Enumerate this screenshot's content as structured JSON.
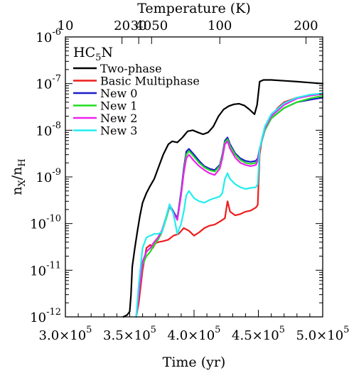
{
  "chart_data": {
    "type": "line",
    "title": "",
    "species_label": {
      "base": "HC",
      "sub": "5",
      "tail": "N"
    },
    "xlabel": "Time (yr)",
    "ylabel": {
      "base": "n",
      "sub1": "X",
      "mid": "/n",
      "sub2": "H"
    },
    "top_axis_label": "Temperature (K)",
    "xlim": [
      300000,
      500000
    ],
    "ylim": [
      1e-12,
      1e-06
    ],
    "y_scale": "log",
    "grid": false,
    "legend_position": "top-left",
    "x_ticks": [
      {
        "value": 300000,
        "mant": "3.0",
        "exp": "5"
      },
      {
        "value": 350000,
        "mant": "3.5",
        "exp": "5"
      },
      {
        "value": 400000,
        "mant": "4.0",
        "exp": "5"
      },
      {
        "value": 450000,
        "mant": "4.5",
        "exp": "5"
      },
      {
        "value": 500000,
        "mant": "5.0",
        "exp": "5"
      }
    ],
    "y_ticks": [
      {
        "value": 1e-12,
        "exp": "-12"
      },
      {
        "value": 1e-11,
        "exp": "-11"
      },
      {
        "value": 1e-10,
        "exp": "-10"
      },
      {
        "value": 1e-09,
        "exp": "-9"
      },
      {
        "value": 1e-08,
        "exp": "-8"
      },
      {
        "value": 1e-07,
        "exp": "-7"
      },
      {
        "value": 1e-06,
        "exp": "-6"
      }
    ],
    "top_ticks": [
      {
        "value": 300000,
        "label": "10"
      },
      {
        "value": 344000,
        "label": "20"
      },
      {
        "value": 357000,
        "label": "30"
      },
      {
        "value": 367000,
        "label": "4050"
      },
      {
        "value": 420000,
        "label": "100"
      },
      {
        "value": 487000,
        "label": "200"
      }
    ],
    "series": [
      {
        "name": "Two-phase",
        "color": "#000000",
        "x": [
          345000,
          348000,
          350000,
          351000,
          352000,
          354000,
          356000,
          358000,
          360000,
          363000,
          366000,
          369000,
          372000,
          376000,
          380000,
          383000,
          387000,
          391000,
          395000,
          399000,
          403000,
          407000,
          411000,
          415000,
          419000,
          423000,
          427000,
          431000,
          435000,
          439000,
          443000,
          447000,
          449000,
          451000,
          454000,
          460000,
          470000,
          480000,
          490000,
          500000
        ],
        "y": [
          1e-12,
          1.1e-12,
          1.3e-12,
          3e-12,
          1.2e-11,
          3e-11,
          7e-11,
          1.5e-10,
          2.8e-10,
          4.5e-10,
          6.5e-10,
          9e-10,
          1.5e-09,
          3e-09,
          5e-09,
          5.8e-09,
          5.5e-09,
          7e-09,
          9.5e-09,
          1e-08,
          9e-09,
          8.2e-09,
          9e-09,
          1.2e-08,
          2e-08,
          2.8e-08,
          3.3e-08,
          3.6e-08,
          3.7e-08,
          3.4e-08,
          2.8e-08,
          2.2e-08,
          3.5e-08,
          1.1e-07,
          1.2e-07,
          1.2e-07,
          1.15e-07,
          1.1e-07,
          1.05e-07,
          1e-07
        ]
      },
      {
        "name": "Basic Multiphase",
        "color": "#ee1c1c",
        "x": [
          355000,
          357000,
          360000,
          363000,
          366000,
          368000,
          370000,
          372000,
          376000,
          380000,
          384000,
          388000,
          392000,
          396000,
          400000,
          404000,
          408000,
          412000,
          416000,
          420000,
          424000,
          426000,
          428000,
          432000,
          436000,
          440000,
          444000,
          448000,
          449500,
          451000,
          453000,
          456000,
          460000,
          465000,
          470000,
          480000,
          490000,
          500000
        ],
        "y": [
          1e-12,
          2e-12,
          1e-11,
          3e-11,
          3.5e-11,
          3e-11,
          3.8e-11,
          4e-11,
          4.2e-11,
          4.5e-11,
          5.5e-11,
          6e-11,
          8e-11,
          7e-11,
          5.5e-11,
          6.5e-11,
          8e-11,
          9e-11,
          9.5e-11,
          1.1e-10,
          1.3e-10,
          3e-10,
          1.8e-10,
          1.5e-10,
          1.6e-10,
          1.8e-10,
          1.9e-10,
          2.2e-10,
          2.5e-10,
          3e-09,
          7e-09,
          1.3e-08,
          2e-08,
          3e-08,
          4e-08,
          5e-08,
          5.5e-08,
          6e-08
        ]
      },
      {
        "name": "New 0",
        "color": "#1c1ccc",
        "x": [
          355000,
          357000,
          360000,
          363000,
          366000,
          369000,
          372000,
          375000,
          378000,
          381000,
          384000,
          387000,
          390000,
          392000,
          394000,
          396000,
          400000,
          404000,
          408000,
          412000,
          416000,
          420000,
          422000,
          424000,
          426000,
          428000,
          432000,
          436000,
          440000,
          444000,
          448000,
          449500,
          451000,
          455000,
          460000,
          470000,
          480000,
          490000,
          500000
        ],
        "y": [
          1e-12,
          3e-12,
          1.5e-11,
          2.5e-11,
          3e-11,
          4e-11,
          5e-11,
          7e-11,
          1.3e-10,
          2.5e-10,
          1.8e-10,
          1.3e-10,
          5e-10,
          1.5e-09,
          3.5e-09,
          4e-09,
          3e-09,
          2.2e-09,
          1.7e-09,
          1.5e-09,
          1.4e-09,
          1.8e-09,
          3e-09,
          6e-09,
          7e-09,
          5e-09,
          3.2e-09,
          2.5e-09,
          2.2e-09,
          2.1e-09,
          2.2e-09,
          2.5e-09,
          4e-09,
          1e-08,
          1.8e-08,
          3e-08,
          4e-08,
          4.5e-08,
          5e-08
        ]
      },
      {
        "name": "New 1",
        "color": "#22dd22",
        "x": [
          355000,
          357000,
          360000,
          363000,
          366000,
          369000,
          372000,
          375000,
          378000,
          381000,
          384000,
          387000,
          390000,
          392000,
          394000,
          396000,
          400000,
          404000,
          408000,
          412000,
          416000,
          420000,
          422000,
          424000,
          426000,
          428000,
          432000,
          436000,
          440000,
          444000,
          448000,
          449500,
          451000,
          455000,
          460000,
          470000,
          480000,
          490000,
          500000
        ],
        "y": [
          1e-12,
          3e-12,
          1.3e-11,
          2e-11,
          2.5e-11,
          3.5e-11,
          4.5e-11,
          6.5e-11,
          1.2e-10,
          2.3e-10,
          1.7e-10,
          1.2e-10,
          4.5e-10,
          1.3e-09,
          3e-09,
          3.6e-09,
          2.7e-09,
          2e-09,
          1.6e-09,
          1.4e-09,
          1.3e-09,
          1.7e-09,
          2.8e-09,
          5.5e-09,
          6.4e-09,
          4.6e-09,
          3e-09,
          2.3e-09,
          2e-09,
          1.9e-09,
          2e-09,
          2.3e-09,
          4e-09,
          1e-08,
          1.8e-08,
          3e-08,
          4e-08,
          4.8e-08,
          5.5e-08
        ]
      },
      {
        "name": "New 2",
        "color": "#ee22ee",
        "x": [
          355000,
          357000,
          360000,
          363000,
          366000,
          369000,
          372000,
          375000,
          378000,
          381000,
          384000,
          387000,
          390000,
          392000,
          394000,
          396000,
          400000,
          404000,
          408000,
          412000,
          416000,
          420000,
          422000,
          424000,
          426000,
          428000,
          432000,
          436000,
          440000,
          444000,
          448000,
          449500,
          451000,
          455000,
          460000,
          470000,
          480000,
          490000,
          500000
        ],
        "y": [
          1e-12,
          3e-12,
          1.5e-11,
          2.5e-11,
          3e-11,
          4e-11,
          5e-11,
          7e-11,
          1.3e-10,
          2.4e-10,
          1.7e-10,
          1.2e-10,
          4.2e-10,
          1.2e-09,
          2.5e-09,
          3e-09,
          2.2e-09,
          1.7e-09,
          1.4e-09,
          1.2e-09,
          1.1e-09,
          1.5e-09,
          2.5e-09,
          5e-09,
          5.8e-09,
          4e-09,
          2.6e-09,
          2e-09,
          1.8e-09,
          1.7e-09,
          1.8e-09,
          2.2e-09,
          4e-09,
          1.1e-08,
          2e-08,
          3.5e-08,
          4.8e-08,
          5.5e-08,
          6e-08
        ]
      },
      {
        "name": "New 3",
        "color": "#22eeee",
        "x": [
          355000,
          357000,
          360000,
          363000,
          366000,
          369000,
          372000,
          375000,
          378000,
          381000,
          384000,
          387000,
          390000,
          392000,
          394000,
          396000,
          400000,
          404000,
          408000,
          412000,
          416000,
          420000,
          422000,
          424000,
          426000,
          428000,
          432000,
          436000,
          440000,
          444000,
          448000,
          449500,
          451000,
          455000,
          460000,
          470000,
          480000,
          490000,
          500000
        ],
        "y": [
          1e-12,
          5e-12,
          3e-11,
          5e-11,
          5.5e-11,
          6e-11,
          6e-11,
          6.5e-11,
          1.3e-10,
          2.6e-10,
          1.6e-10,
          6e-11,
          1e-10,
          1.8e-10,
          4e-10,
          5e-10,
          3.5e-10,
          3e-10,
          2.8e-10,
          3.2e-10,
          3.5e-10,
          3.8e-10,
          4.5e-10,
          9e-10,
          1.2e-09,
          9e-10,
          7e-10,
          6e-10,
          5.5e-10,
          5.8e-10,
          6e-10,
          7e-10,
          4e-09,
          1.2e-08,
          2.2e-08,
          3.8e-08,
          5e-08,
          5.8e-08,
          6.2e-08
        ]
      }
    ]
  }
}
